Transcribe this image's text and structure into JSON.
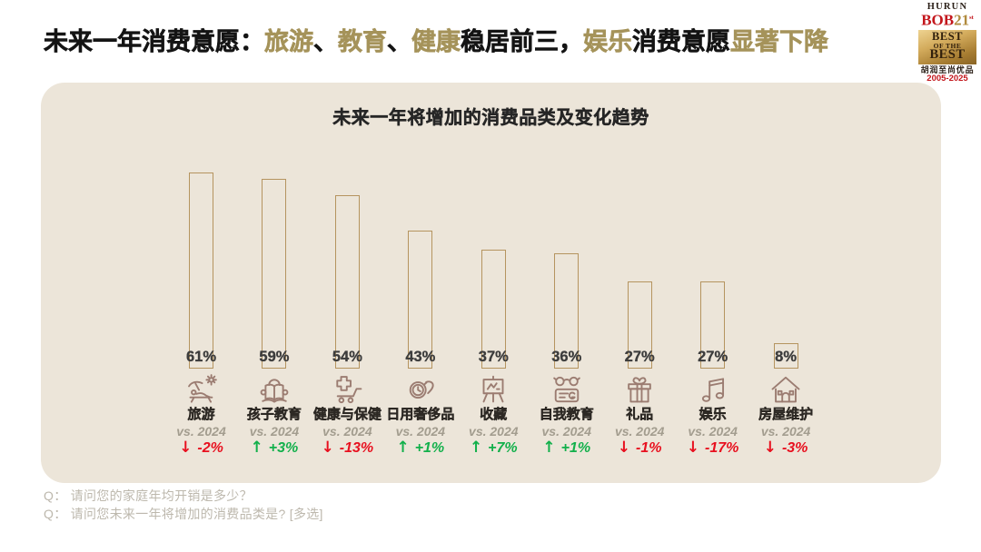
{
  "header": {
    "title_parts": [
      {
        "text": "未来一年消费意愿：",
        "tone": "dark"
      },
      {
        "text": "旅游",
        "tone": "gold"
      },
      {
        "text": "、",
        "tone": "dark"
      },
      {
        "text": "教育",
        "tone": "gold"
      },
      {
        "text": "、",
        "tone": "dark"
      },
      {
        "text": "健康",
        "tone": "gold"
      },
      {
        "text": "稳居前三，",
        "tone": "dark"
      },
      {
        "text": "娱乐",
        "tone": "gold"
      },
      {
        "text": "消费意愿",
        "tone": "dark"
      },
      {
        "text": "显著下降",
        "tone": "gold"
      }
    ]
  },
  "logo": {
    "brand": "HURUN",
    "bob": "BOB",
    "edition": "21",
    "edition_suffix": "st",
    "best1": "BEST",
    "of_the": "OF THE",
    "best2": "BEST",
    "chinese_name": "胡润至尚优品",
    "years": "2005-2025"
  },
  "chart_data": {
    "type": "bar",
    "title": "未来一年将增加的消费品类及变化趋势",
    "xlabel": "",
    "ylabel": "",
    "unit": "%",
    "ylim": [
      0,
      70
    ],
    "grid": false,
    "legend": false,
    "categories": [
      "旅游",
      "孩子教育",
      "健康与保健",
      "日用奢侈品",
      "收藏",
      "自我教育",
      "礼品",
      "娱乐",
      "房屋维护"
    ],
    "values": [
      61,
      59,
      54,
      43,
      37,
      36,
      27,
      27,
      8
    ],
    "value_labels": [
      "61%",
      "59%",
      "54%",
      "43%",
      "37%",
      "36%",
      "27%",
      "27%",
      "8%"
    ],
    "comparison_label": "vs. 2024",
    "series": [
      {
        "name": "未来一年将增加的消费品类占比",
        "values": [
          61,
          59,
          54,
          43,
          37,
          36,
          27,
          27,
          8
        ]
      },
      {
        "name": "vs. 2024 变化",
        "values": [
          -2,
          3,
          -13,
          1,
          7,
          1,
          -1,
          -17,
          -3
        ]
      }
    ],
    "changes": [
      "-2%",
      "+3%",
      "-13%",
      "+1%",
      "+7%",
      "+1%",
      "-1%",
      "-17%",
      "-3%"
    ],
    "change_directions": [
      "down",
      "up",
      "down",
      "up",
      "up",
      "up",
      "down",
      "down",
      "down"
    ],
    "change_arrows": {
      "up": "↑",
      "down": "↓"
    },
    "icons": [
      "beach-lounger-icon",
      "child-reading-icon",
      "medical-cart-icon",
      "wristwatch-icon",
      "easel-icon",
      "glasses-card-icon",
      "gift-box-icon",
      "music-notes-icon",
      "house-icon"
    ]
  },
  "footnotes": {
    "questions": [
      "Q： 请问您的家庭年均开销是多少？",
      "Q： 请问您未来一年将增加的消费品类是? [多选]"
    ]
  },
  "colors": {
    "title-dark": "#141414",
    "title-gold": "#a5935a",
    "panel-bg": "#ece5d9",
    "chart-title": "#262626",
    "bar-outline": "#b5945f",
    "pct-color": "#3c3c3c",
    "icon-stroke": "#9b7c71",
    "cat-color": "#2d2924",
    "vs-color": "#a39d8f",
    "up-green": "#12b04b",
    "down-red": "#e8101f",
    "question-gray": "#bdb8ad",
    "logo-dark": "#2a1f17",
    "logo-red": "#c3161c",
    "logo-gold": "#b08a3d"
  }
}
